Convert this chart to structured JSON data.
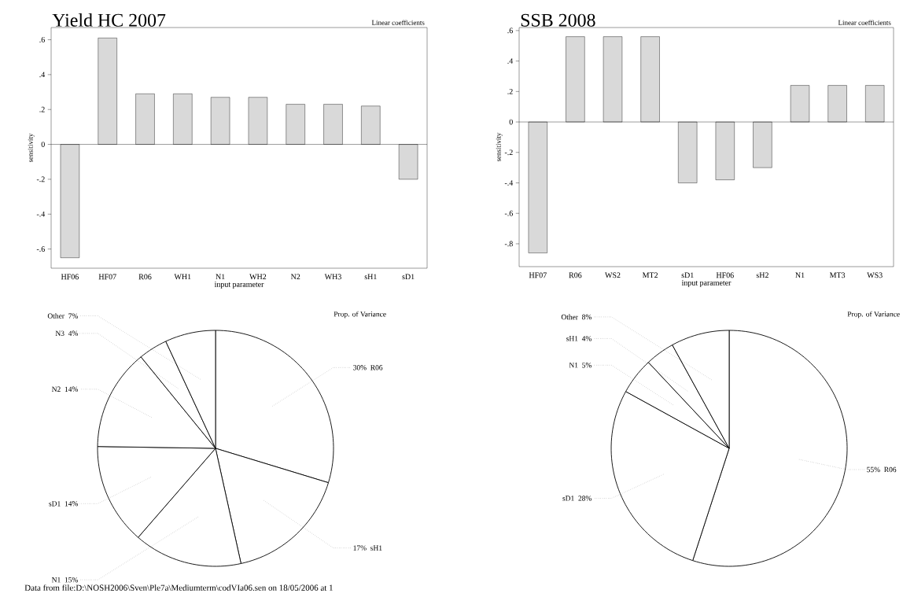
{
  "chart_data": [
    {
      "type": "bar",
      "title": "Yield HC 2007",
      "subtitle": "Linear coefficients",
      "xlabel": "input parameter",
      "ylabel": "sensitivity",
      "color": "#d9d9d9",
      "categories": [
        "HF06",
        "HF07",
        "R06",
        "WH1",
        "N1",
        "WH2",
        "N2",
        "WH3",
        "sH1",
        "sD1"
      ],
      "values": [
        -0.65,
        0.61,
        0.29,
        0.29,
        0.27,
        0.27,
        0.23,
        0.23,
        0.22,
        -0.2
      ],
      "ylim": [
        -0.71,
        0.67
      ],
      "yticks": [
        {
          "value": -0.6,
          "label": "-.6"
        },
        {
          "value": -0.4,
          "label": "-.4"
        },
        {
          "value": -0.2,
          "label": "-.2"
        },
        0,
        {
          "value": 0.2,
          "label": ".2"
        },
        {
          "value": 0.4,
          "label": ".4"
        },
        {
          "value": 0.6,
          "label": ".6"
        }
      ]
    },
    {
      "type": "bar",
      "title": "SSB 2008",
      "subtitle": "Linear coefficients",
      "xlabel": "input parameter",
      "ylabel": "sensitivity",
      "color": "#d9d9d9",
      "categories": [
        "HF07",
        "R06",
        "WS2",
        "MT2",
        "sD1",
        "HF06",
        "sH2",
        "N1",
        "MT3",
        "WS3"
      ],
      "values": [
        -0.86,
        0.56,
        0.56,
        0.56,
        -0.4,
        -0.38,
        -0.3,
        0.24,
        0.24,
        0.24
      ],
      "ylim": [
        -0.95,
        0.62
      ],
      "yticks": [
        {
          "value": -0.8,
          "label": "-.8"
        },
        {
          "value": -0.6,
          "label": "-.6"
        },
        {
          "value": -0.4,
          "label": "-.4"
        },
        {
          "value": -0.2,
          "label": "-.2"
        },
        0,
        {
          "value": 0.2,
          "label": ".2"
        },
        {
          "value": 0.4,
          "label": ".4"
        },
        {
          "value": 0.6,
          "label": ".6"
        }
      ]
    },
    {
      "type": "pie",
      "title": "Prop. of Variance",
      "categories": [
        "R06",
        "sH1",
        "N1",
        "sD1",
        "N2",
        "N3",
        "Other"
      ],
      "values": [
        30,
        17,
        15,
        14,
        14,
        4,
        7
      ],
      "value_labels": [
        "30%",
        "17%",
        "15%",
        "14%",
        "14%",
        "4%",
        "7%"
      ],
      "colors": [
        "#ffffff",
        "#ffffff",
        "#ffffff",
        "#ffffff",
        "#ffffff",
        "#ffffff",
        "#ffffff"
      ],
      "annotations": [
        "Data from file:D:\\NOSH2006\\Sven\\Ple7a\\Mediumterm\\codVIa06.sen on 18/05/2006 at 1"
      ]
    },
    {
      "type": "pie",
      "title": "Prop. of Variance",
      "categories": [
        "R06",
        "sD1",
        "N1",
        "sH1",
        "Other"
      ],
      "values": [
        55,
        28,
        5,
        4,
        8
      ],
      "value_labels": [
        "55%",
        "28%",
        "5%",
        "4%",
        "8%"
      ],
      "colors": [
        "#ffffff",
        "#ffffff",
        "#ffffff",
        "#ffffff",
        "#ffffff"
      ]
    }
  ]
}
